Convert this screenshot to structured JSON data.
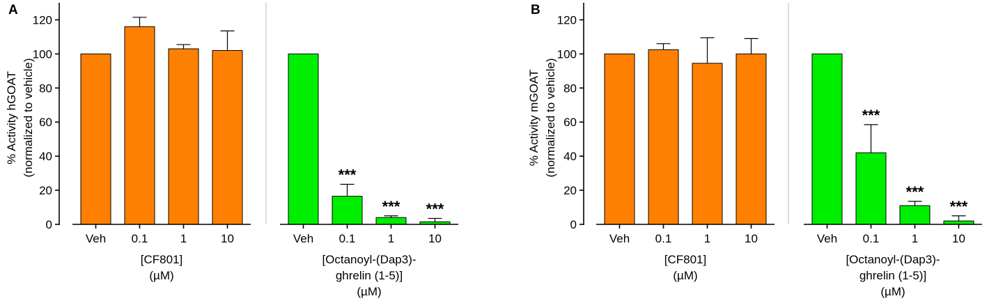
{
  "chart_data": [
    {
      "type": "bar",
      "panel_label": "A",
      "ylabel_lines": [
        "% Activity hGOAT",
        "(normalized to vehicle)"
      ],
      "ylim": [
        0,
        130
      ],
      "yticks": [
        0,
        20,
        40,
        60,
        80,
        100,
        120
      ],
      "groups": [
        {
          "label_lines": [
            "[CF801]",
            "(µM)"
          ],
          "color": "#ff8000",
          "categories": [
            "Veh",
            "0.1",
            "1",
            "10"
          ],
          "values": [
            100,
            116,
            103,
            102
          ],
          "errors": [
            0,
            5.5,
            2.5,
            11.5
          ],
          "significance": [
            "",
            "",
            "",
            ""
          ]
        },
        {
          "label_lines": [
            "[Octanoyl-(Dap3)-",
            "ghrelin (1-5)]",
            "(µM)"
          ],
          "color": "#00ee00",
          "categories": [
            "Veh",
            "0.1",
            "1",
            "10"
          ],
          "values": [
            100,
            16.5,
            4,
            1.5
          ],
          "errors": [
            0,
            7,
            1,
            2
          ],
          "significance": [
            "",
            "***",
            "***",
            "***"
          ]
        }
      ]
    },
    {
      "type": "bar",
      "panel_label": "B",
      "ylabel_lines": [
        "% Activity mGOAT",
        "(normalized to vehicle)"
      ],
      "ylim": [
        0,
        130
      ],
      "yticks": [
        0,
        20,
        40,
        60,
        80,
        100,
        120
      ],
      "groups": [
        {
          "label_lines": [
            "[CF801]",
            "(µM)"
          ],
          "color": "#ff8000",
          "categories": [
            "Veh",
            "0.1",
            "1",
            "10"
          ],
          "values": [
            100,
            102.5,
            94.5,
            100
          ],
          "errors": [
            0,
            3.5,
            15,
            9
          ],
          "significance": [
            "",
            "",
            "",
            ""
          ]
        },
        {
          "label_lines": [
            "[Octanoyl-(Dap3)-",
            "ghrelin (1-5)]",
            "(µM)"
          ],
          "color": "#00ee00",
          "categories": [
            "Veh",
            "0.1",
            "1",
            "10"
          ],
          "values": [
            100,
            42,
            11,
            2
          ],
          "errors": [
            0,
            16.5,
            2.5,
            3
          ],
          "significance": [
            "",
            "***",
            "***",
            "***"
          ]
        }
      ]
    }
  ]
}
